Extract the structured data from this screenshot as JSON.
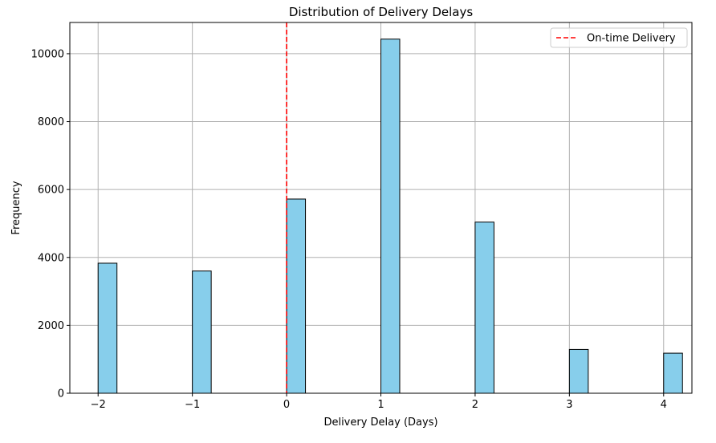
{
  "chart_data": {
    "type": "bar",
    "title": "Distribution of Delivery Delays",
    "xlabel": "Delivery Delay (Days)",
    "ylabel": "Frequency",
    "xlim": [
      -2.3,
      4.3
    ],
    "ylim": [
      0,
      10920
    ],
    "xticks": [
      -2,
      -1,
      0,
      1,
      2,
      3,
      4
    ],
    "xtick_labels": [
      "−2",
      "−1",
      "0",
      "1",
      "2",
      "3",
      "4"
    ],
    "yticks": [
      0,
      2000,
      4000,
      6000,
      8000,
      10000
    ],
    "ytick_labels": [
      "0",
      "2000",
      "4000",
      "6000",
      "8000",
      "10000"
    ],
    "grid": true,
    "bar_width": 0.2,
    "bars": [
      {
        "x": -2,
        "value": 3830
      },
      {
        "x": -1,
        "value": 3600
      },
      {
        "x": 0,
        "value": 5720
      },
      {
        "x": 1,
        "value": 10430
      },
      {
        "x": 2,
        "value": 5040
      },
      {
        "x": 3,
        "value": 1290
      },
      {
        "x": 4,
        "value": 1180
      }
    ],
    "reference_line": {
      "x": 0,
      "label": "On-time Delivery",
      "color": "#ff0000",
      "style": "dashed"
    },
    "legend": {
      "position": "top-right",
      "entries": [
        "On-time Delivery"
      ]
    },
    "colors": {
      "bar_fill": "#87ceeb",
      "bar_edge": "#000000",
      "grid": "#b0b0b0"
    }
  }
}
